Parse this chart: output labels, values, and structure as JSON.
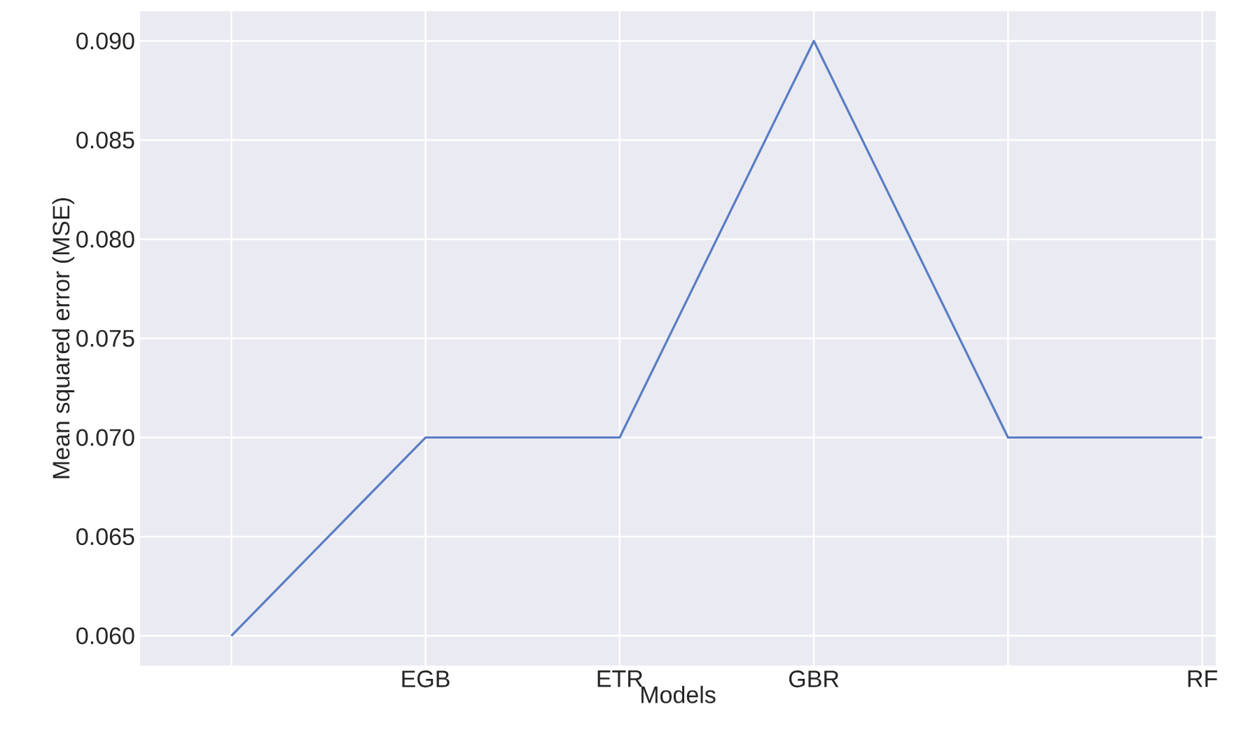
{
  "chart_data": {
    "type": "line",
    "xlabel": "Models",
    "ylabel": "Mean squared error (MSE)",
    "categories": [
      null,
      "EGB",
      "ETR",
      "GBR",
      null,
      "RF"
    ],
    "series": [
      {
        "color": "#5a7dc4",
        "values": [
          0.06,
          0.07,
          0.07,
          0.09,
          0.07,
          0.07
        ]
      }
    ],
    "ylim": [
      0.0585,
      0.0915
    ],
    "yticks": [
      {
        "value": 0.06,
        "label": "0.060"
      },
      {
        "value": 0.065,
        "label": "0.065"
      },
      {
        "value": 0.07,
        "label": "0.070"
      },
      {
        "value": 0.075,
        "label": "0.075"
      },
      {
        "value": 0.08,
        "label": "0.080"
      },
      {
        "value": 0.085,
        "label": "0.085"
      },
      {
        "value": 0.09,
        "label": "0.090"
      }
    ],
    "grid": true,
    "marker": "none",
    "line_style": "solid"
  }
}
